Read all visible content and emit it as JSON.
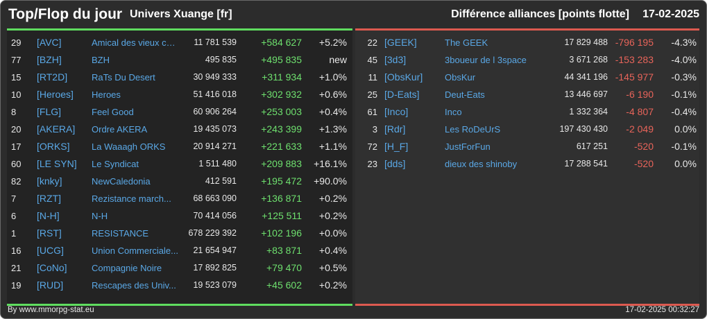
{
  "header": {
    "title": "Top/Flop du jour",
    "universe": "Univers Xuange [fr]",
    "subtitle": "Différence alliances [points flotte]",
    "date": "17-02-2025"
  },
  "colors": {
    "top_accent": "#5fdd5f",
    "flop_accent": "#dd5a50",
    "gain": "#6ee06e",
    "loss": "#e8645a",
    "tag": "#5aa8e6"
  },
  "top": [
    {
      "rank": "29",
      "tag": "[AVC]",
      "name": "Amical des vieux co...",
      "points": "11 781 539",
      "diff": "+584 627",
      "pct": "+5.2%"
    },
    {
      "rank": "77",
      "tag": "[BZH]",
      "name": "BZH",
      "points": "495 835",
      "diff": "+495 835",
      "pct": "new"
    },
    {
      "rank": "15",
      "tag": "[RT2D]",
      "name": "RaTs Du Desert",
      "points": "30 949 333",
      "diff": "+311 934",
      "pct": "+1.0%"
    },
    {
      "rank": "10",
      "tag": "[Heroes]",
      "name": "Heroes",
      "points": "51 416 018",
      "diff": "+302 932",
      "pct": "+0.6%"
    },
    {
      "rank": "8",
      "tag": "[FLG]",
      "name": "Feel Good",
      "points": "60 906 264",
      "diff": "+253 003",
      "pct": "+0.4%"
    },
    {
      "rank": "20",
      "tag": "[AKERA]",
      "name": "Ordre AKERA",
      "points": "19 435 073",
      "diff": "+243 399",
      "pct": "+1.3%"
    },
    {
      "rank": "17",
      "tag": "[ORKS]",
      "name": "La Waaagh ORKS",
      "points": "20 914 271",
      "diff": "+221 633",
      "pct": "+1.1%"
    },
    {
      "rank": "60",
      "tag": "[LE SYN]",
      "name": "Le Syndicat",
      "points": "1 511 480",
      "diff": "+209 883",
      "pct": "+16.1%"
    },
    {
      "rank": "82",
      "tag": "[knky]",
      "name": "NewCaledonia",
      "points": "412 591",
      "diff": "+195 472",
      "pct": "+90.0%"
    },
    {
      "rank": "7",
      "tag": "[RZT]",
      "name": "Rezistance march...",
      "points": "68 663 090",
      "diff": "+136 871",
      "pct": "+0.2%"
    },
    {
      "rank": "6",
      "tag": "[N-H]",
      "name": "N-H",
      "points": "70 414 056",
      "diff": "+125 511",
      "pct": "+0.2%"
    },
    {
      "rank": "1",
      "tag": "[RST]",
      "name": "RESISTANCE",
      "points": "678 229 392",
      "diff": "+102 196",
      "pct": "+0.0%"
    },
    {
      "rank": "16",
      "tag": "[UCG]",
      "name": "Union Commerciale...",
      "points": "21 654 947",
      "diff": "+83 871",
      "pct": "+0.4%"
    },
    {
      "rank": "21",
      "tag": "[CoNo]",
      "name": "Compagnie Noire",
      "points": "17 892 825",
      "diff": "+79 470",
      "pct": "+0.5%"
    },
    {
      "rank": "19",
      "tag": "[RUD]",
      "name": "Rescapes des Univ...",
      "points": "19 523 079",
      "diff": "+45 602",
      "pct": "+0.2%"
    }
  ],
  "flop": [
    {
      "rank": "22",
      "tag": "[GEEK]",
      "name": "The GEEK",
      "points": "17 829 488",
      "diff": "-796 195",
      "pct": "-4.3%"
    },
    {
      "rank": "45",
      "tag": "[3d3]",
      "name": "3boueur de l 3space",
      "points": "3 671 268",
      "diff": "-153 283",
      "pct": "-4.0%"
    },
    {
      "rank": "11",
      "tag": "[ObsKur]",
      "name": "ObsKur",
      "points": "44 341 196",
      "diff": "-145 977",
      "pct": "-0.3%"
    },
    {
      "rank": "25",
      "tag": "[D-Eats]",
      "name": "Deut-Eats",
      "points": "13 446 697",
      "diff": "-6 190",
      "pct": "-0.1%"
    },
    {
      "rank": "61",
      "tag": "[Inco]",
      "name": "Inco",
      "points": "1 332 364",
      "diff": "-4 807",
      "pct": "-0.4%"
    },
    {
      "rank": "3",
      "tag": "[Rdr]",
      "name": "Les RoDeUrS",
      "points": "197 430 430",
      "diff": "-2 049",
      "pct": "0.0%"
    },
    {
      "rank": "72",
      "tag": "[H_F]",
      "name": "JustForFun",
      "points": "617 251",
      "diff": "-520",
      "pct": "-0.1%"
    },
    {
      "rank": "23",
      "tag": "[dds]",
      "name": "dieux des shinoby",
      "points": "17 288 541",
      "diff": "-520",
      "pct": "0.0%"
    }
  ],
  "footer": {
    "credit": "By www.mmorpg-stat.eu",
    "timestamp": "17-02-2025 00:32:27"
  }
}
